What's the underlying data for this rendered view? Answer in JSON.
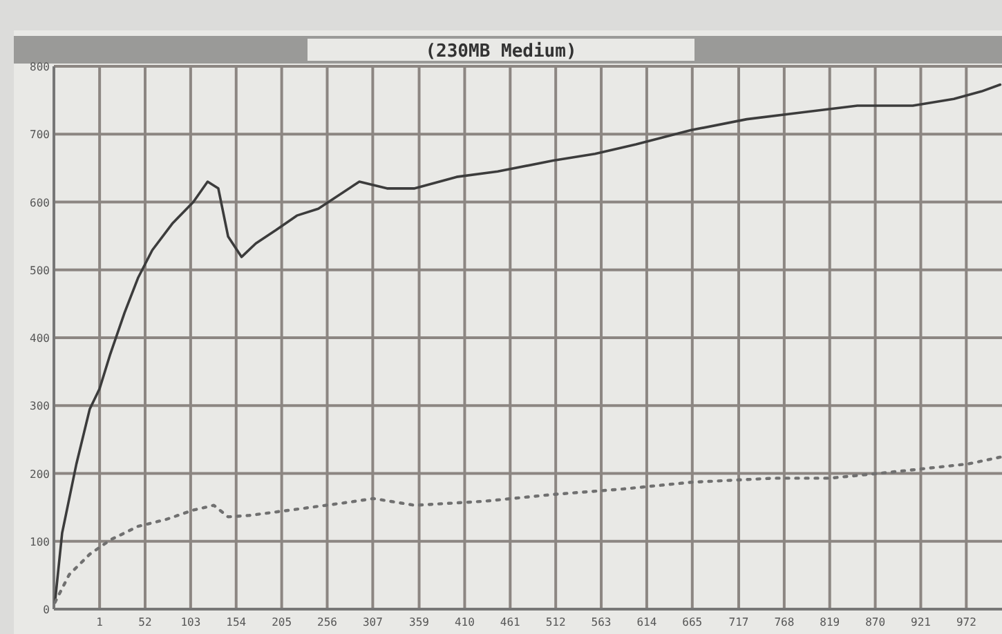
{
  "chart_data": {
    "type": "line",
    "title": "(230MB Medium)",
    "xlim": [
      -50.2,
      1012
    ],
    "xticks": [
      1,
      52,
      103,
      154,
      205,
      256,
      307,
      359,
      410,
      461,
      512,
      563,
      614,
      665,
      717,
      768,
      819,
      870,
      921,
      972
    ],
    "ylim": [
      0,
      800
    ],
    "yticks": [
      0,
      100,
      200,
      300,
      400,
      500,
      600,
      700,
      800
    ],
    "grid": true,
    "series": [
      {
        "color": "#3c3c3c",
        "line_style": "solid",
        "x": [
          -49,
          -41,
          -25,
          -10,
          1,
          13,
          29,
          44,
          60,
          83,
          106,
          122,
          134,
          145,
          160,
          176,
          199,
          222,
          246,
          292,
          323,
          354,
          401,
          447,
          509,
          556,
          602,
          664,
          726,
          788,
          850,
          912,
          958,
          989,
          1010
        ],
        "values": [
          10,
          112,
          214,
          295,
          325,
          376,
          437,
          488,
          529,
          569,
          600,
          630,
          620,
          549,
          519,
          539,
          559,
          580,
          590,
          630,
          620,
          620,
          637,
          645,
          661,
          671,
          685,
          706,
          722,
          732,
          742,
          742,
          752,
          763,
          773
        ]
      },
      {
        "color": "#707070",
        "line_style": "dotted",
        "x": [
          -49,
          -33,
          -10,
          13,
          44,
          75,
          106,
          129,
          145,
          168,
          215,
          277,
          308,
          354,
          432,
          509,
          587,
          664,
          757,
          819,
          896,
          974,
          1010
        ],
        "values": [
          10,
          51,
          81,
          102,
          122,
          132,
          146,
          153,
          136,
          138,
          146,
          157,
          163,
          153,
          159,
          169,
          177,
          187,
          193,
          193,
          203,
          214,
          224
        ]
      }
    ]
  }
}
